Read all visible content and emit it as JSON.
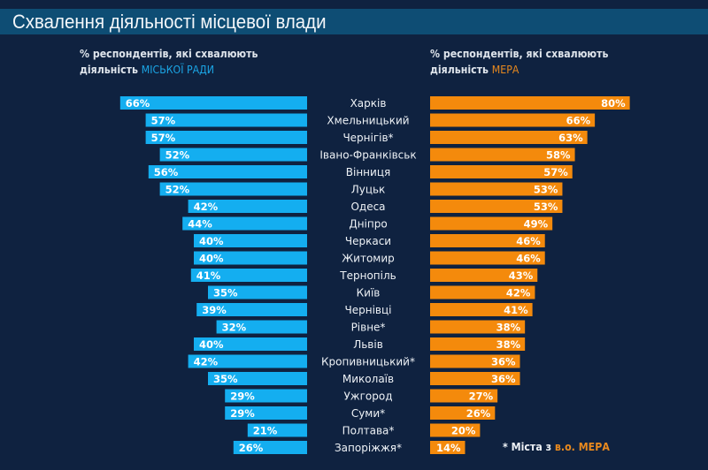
{
  "header": {
    "title": "Схвалення діяльності місцевої влади"
  },
  "subtitles": {
    "left_line1": "% респондентів, які схвалюють",
    "left_line2_prefix": "діяльність ",
    "left_line2_highlight": "МІСЬКОЇ РАДИ",
    "right_line1": "% респондентів, які схвалюють",
    "right_line2_prefix": "діяльність ",
    "right_line2_highlight": "МЕРА"
  },
  "footnote": {
    "prefix": "* Міста з ",
    "highlight": "в.о. МЕРА"
  },
  "colors": {
    "background": "#0f2240",
    "title_bar": "#0e4d74",
    "city_council": "#14aef0",
    "mayor": "#f48a0c"
  },
  "chart_data": {
    "type": "bar",
    "title": "Схвалення діяльності місцевої влади",
    "orientation": "horizontal-butterfly",
    "value_suffix": "%",
    "categories": [
      "Харків",
      "Хмельницький",
      "Чернігів*",
      "Івано-Франківськ",
      "Вінниця",
      "Луцьк",
      "Одеса",
      "Дніпро",
      "Черкаси",
      "Житомир",
      "Тернопіль",
      "Київ",
      "Чернівці",
      "Рівне*",
      "Львів",
      "Кропивницький*",
      "Миколаїв",
      "Ужгород",
      "Суми*",
      "Полтава*",
      "Запоріжжя*"
    ],
    "series": [
      {
        "name": "% респондентів, які схвалюють діяльність МІСЬКОЇ РАДИ",
        "side": "left",
        "values": [
          66,
          57,
          57,
          52,
          56,
          52,
          42,
          44,
          40,
          40,
          41,
          35,
          39,
          32,
          40,
          42,
          35,
          29,
          29,
          21,
          26
        ]
      },
      {
        "name": "% респондентів, які схвалюють діяльність МЕРА",
        "side": "right",
        "values": [
          80,
          66,
          63,
          58,
          57,
          53,
          53,
          49,
          46,
          46,
          43,
          42,
          41,
          38,
          38,
          36,
          36,
          27,
          26,
          20,
          14
        ]
      }
    ],
    "xlim": [
      0,
      100
    ],
    "grid": false,
    "legend": "top"
  }
}
